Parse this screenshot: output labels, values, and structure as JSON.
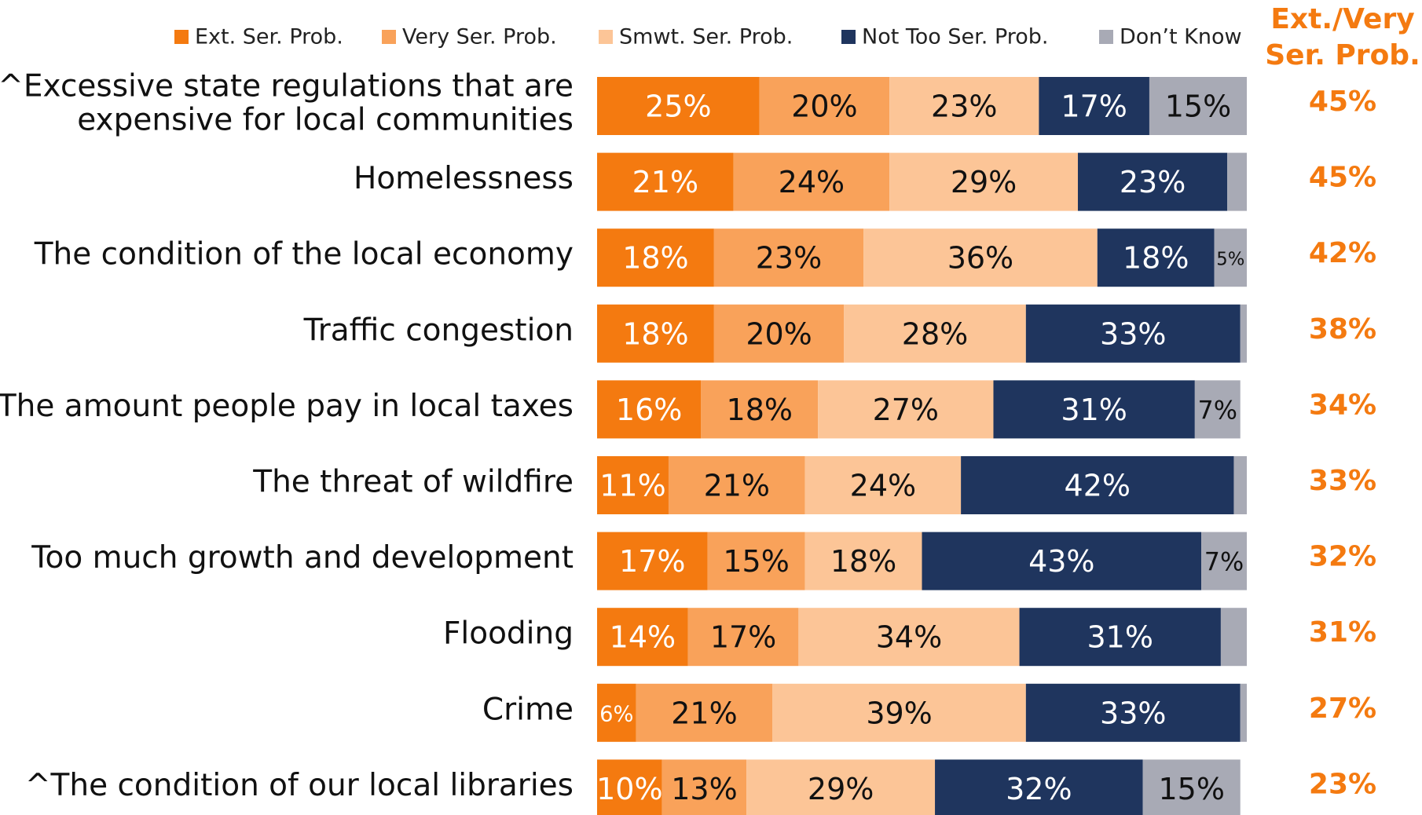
{
  "chart_data": {
    "type": "stacked-bar-horizontal",
    "categories": [
      "^Excessive state regulations that are\nexpensive for local communities",
      "Homelessness",
      "The condition of the local economy",
      "Traffic congestion",
      "The amount people pay in local taxes",
      "The threat of wildfire",
      "Too much growth and development",
      "Flooding",
      "Crime",
      "^The condition of our local libraries"
    ],
    "xlim": [
      0,
      100
    ],
    "series": [
      {
        "name": "Ext. Ser. Prob.",
        "color": "#f47a10",
        "text_color": "#ffffff",
        "values": [
          25,
          21,
          18,
          18,
          16,
          11,
          17,
          14,
          6,
          10
        ],
        "value_labels": [
          "25%",
          "21%",
          "18%",
          "18%",
          "16%",
          "11%",
          "17%",
          "14%",
          "6%",
          "10%"
        ]
      },
      {
        "name": "Very Ser. Prob.",
        "color": "#f9a25a",
        "text_color": "#111111",
        "values": [
          20,
          24,
          23,
          20,
          18,
          21,
          15,
          17,
          21,
          13
        ],
        "value_labels": [
          "20%",
          "24%",
          "23%",
          "20%",
          "18%",
          "21%",
          "15%",
          "17%",
          "21%",
          "13%"
        ]
      },
      {
        "name": "Smwt. Ser. Prob.",
        "color": "#fcc597",
        "text_color": "#111111",
        "values": [
          23,
          29,
          36,
          28,
          27,
          24,
          18,
          34,
          39,
          29
        ],
        "value_labels": [
          "23%",
          "29%",
          "36%",
          "28%",
          "27%",
          "24%",
          "18%",
          "34%",
          "39%",
          "29%"
        ]
      },
      {
        "name": "Not Too Ser. Prob.",
        "color": "#1f355e",
        "text_color": "#ffffff",
        "values": [
          17,
          23,
          18,
          33,
          31,
          42,
          43,
          31,
          33,
          32
        ],
        "value_labels": [
          "17%",
          "23%",
          "18%",
          "33%",
          "31%",
          "42%",
          "43%",
          "31%",
          "33%",
          "32%"
        ]
      },
      {
        "name": "Don’t Know",
        "color": "#a8aab5",
        "text_color": "#111111",
        "values": [
          15,
          3,
          5,
          1,
          7,
          2,
          7,
          4,
          1,
          15
        ],
        "value_labels": [
          "15%",
          null,
          "5%",
          null,
          "7%",
          null,
          "7%",
          null,
          null,
          "15%"
        ]
      }
    ],
    "totals": {
      "title": [
        "Ext./Very",
        "Ser. Prob."
      ],
      "color": "#f47a10",
      "values": [
        45,
        45,
        42,
        38,
        34,
        33,
        32,
        31,
        27,
        23
      ],
      "value_labels": [
        "45%",
        "45%",
        "42%",
        "38%",
        "34%",
        "33%",
        "32%",
        "31%",
        "27%",
        "23%"
      ]
    }
  }
}
